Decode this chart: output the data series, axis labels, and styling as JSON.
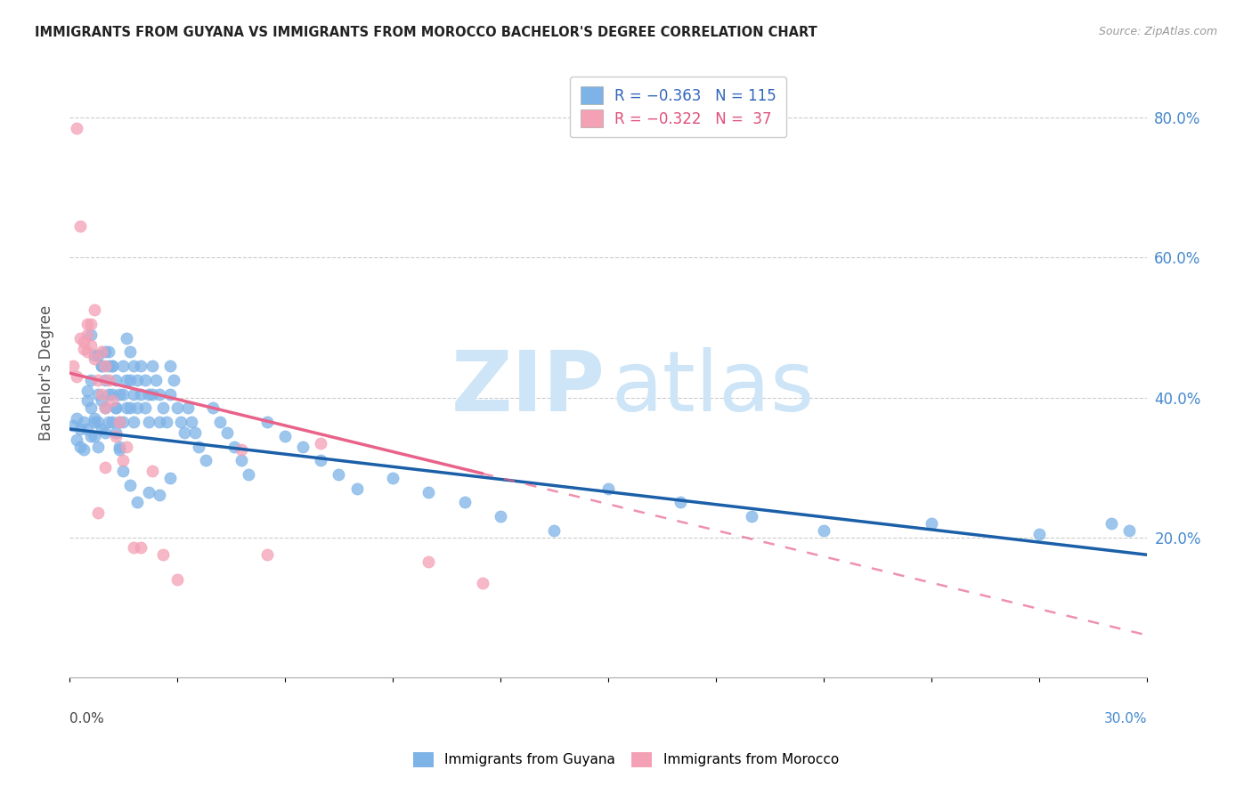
{
  "title": "IMMIGRANTS FROM GUYANA VS IMMIGRANTS FROM MOROCCO BACHELOR'S DEGREE CORRELATION CHART",
  "source": "Source: ZipAtlas.com",
  "ylabel": "Bachelor's Degree",
  "color_guyana": "#7eb3e8",
  "color_morocco": "#f4a0b5",
  "color_guyana_line": "#1a5fa8",
  "color_morocco_line": "#e8628a",
  "watermark_color": "#cde5f7",
  "xmin": 0.0,
  "xmax": 0.3,
  "ymin": 0.0,
  "ymax": 0.87,
  "right_yticks": [
    0.0,
    0.2,
    0.4,
    0.6,
    0.8
  ],
  "right_yticklabels": [
    "",
    "20.0%",
    "40.0%",
    "60.0%",
    "80.0%"
  ],
  "guyana_line_x0": 0.0,
  "guyana_line_y0": 0.355,
  "guyana_line_x1": 0.3,
  "guyana_line_y1": 0.175,
  "morocco_line_x0": 0.0,
  "morocco_line_y0": 0.435,
  "morocco_line_x1": 0.3,
  "morocco_line_y1": 0.06,
  "guyana_x": [
    0.001,
    0.002,
    0.002,
    0.003,
    0.003,
    0.004,
    0.004,
    0.005,
    0.005,
    0.005,
    0.006,
    0.006,
    0.006,
    0.007,
    0.007,
    0.007,
    0.008,
    0.008,
    0.008,
    0.009,
    0.009,
    0.009,
    0.01,
    0.01,
    0.01,
    0.011,
    0.011,
    0.011,
    0.012,
    0.012,
    0.012,
    0.013,
    0.013,
    0.013,
    0.014,
    0.014,
    0.014,
    0.015,
    0.015,
    0.015,
    0.016,
    0.016,
    0.016,
    0.017,
    0.017,
    0.017,
    0.018,
    0.018,
    0.018,
    0.019,
    0.019,
    0.02,
    0.02,
    0.021,
    0.021,
    0.022,
    0.022,
    0.023,
    0.023,
    0.024,
    0.025,
    0.025,
    0.026,
    0.027,
    0.028,
    0.028,
    0.029,
    0.03,
    0.031,
    0.032,
    0.033,
    0.034,
    0.035,
    0.036,
    0.038,
    0.04,
    0.042,
    0.044,
    0.046,
    0.048,
    0.05,
    0.055,
    0.06,
    0.065,
    0.07,
    0.075,
    0.08,
    0.09,
    0.1,
    0.11,
    0.12,
    0.135,
    0.15,
    0.17,
    0.19,
    0.21,
    0.24,
    0.27,
    0.29,
    0.295,
    0.006,
    0.007,
    0.008,
    0.009,
    0.01,
    0.011,
    0.012,
    0.013,
    0.014,
    0.015,
    0.017,
    0.019,
    0.022,
    0.025,
    0.028
  ],
  "guyana_y": [
    0.36,
    0.34,
    0.37,
    0.33,
    0.355,
    0.325,
    0.365,
    0.355,
    0.395,
    0.41,
    0.425,
    0.385,
    0.345,
    0.37,
    0.345,
    0.365,
    0.405,
    0.365,
    0.33,
    0.445,
    0.395,
    0.355,
    0.425,
    0.385,
    0.35,
    0.465,
    0.405,
    0.365,
    0.445,
    0.405,
    0.365,
    0.425,
    0.385,
    0.35,
    0.405,
    0.365,
    0.33,
    0.445,
    0.405,
    0.365,
    0.485,
    0.425,
    0.385,
    0.465,
    0.425,
    0.385,
    0.445,
    0.405,
    0.365,
    0.425,
    0.385,
    0.445,
    0.405,
    0.425,
    0.385,
    0.405,
    0.365,
    0.445,
    0.405,
    0.425,
    0.405,
    0.365,
    0.385,
    0.365,
    0.445,
    0.405,
    0.425,
    0.385,
    0.365,
    0.35,
    0.385,
    0.365,
    0.35,
    0.33,
    0.31,
    0.385,
    0.365,
    0.35,
    0.33,
    0.31,
    0.29,
    0.365,
    0.345,
    0.33,
    0.31,
    0.29,
    0.27,
    0.285,
    0.265,
    0.25,
    0.23,
    0.21,
    0.27,
    0.25,
    0.23,
    0.21,
    0.22,
    0.205,
    0.22,
    0.21,
    0.49,
    0.46,
    0.46,
    0.445,
    0.465,
    0.445,
    0.445,
    0.385,
    0.325,
    0.295,
    0.275,
    0.25,
    0.265,
    0.26,
    0.285
  ],
  "morocco_x": [
    0.001,
    0.002,
    0.003,
    0.004,
    0.005,
    0.005,
    0.006,
    0.007,
    0.007,
    0.008,
    0.009,
    0.009,
    0.01,
    0.01,
    0.011,
    0.012,
    0.013,
    0.014,
    0.015,
    0.016,
    0.018,
    0.02,
    0.023,
    0.026,
    0.03,
    0.048,
    0.055,
    0.07,
    0.1,
    0.115,
    0.002,
    0.003,
    0.004,
    0.005,
    0.006,
    0.008,
    0.01
  ],
  "morocco_y": [
    0.445,
    0.43,
    0.485,
    0.48,
    0.465,
    0.505,
    0.505,
    0.455,
    0.525,
    0.425,
    0.465,
    0.405,
    0.445,
    0.385,
    0.425,
    0.395,
    0.345,
    0.365,
    0.31,
    0.33,
    0.185,
    0.185,
    0.295,
    0.175,
    0.14,
    0.325,
    0.175,
    0.335,
    0.165,
    0.135,
    0.785,
    0.645,
    0.47,
    0.49,
    0.475,
    0.235,
    0.3
  ]
}
